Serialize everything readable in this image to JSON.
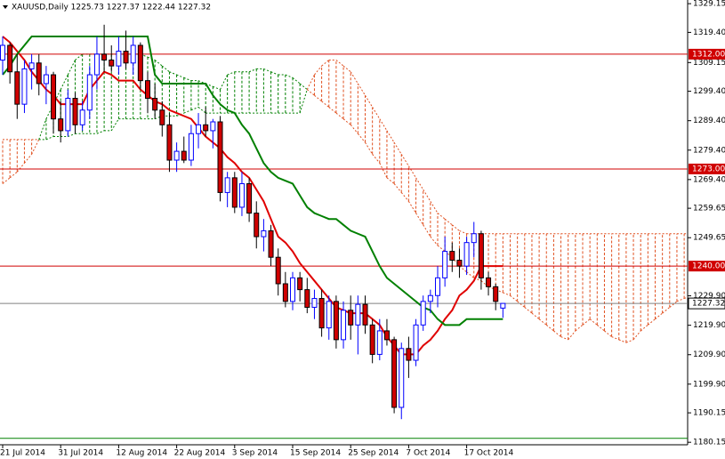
{
  "chart_data": {
    "type": "candlestick",
    "title": "XAUUSD,Daily 1225.73 1227.37 1222.44 1227.32",
    "categories": [
      "21 Jul 2014",
      null,
      null,
      null,
      null,
      null,
      null,
      null,
      "31 Jul 2014",
      null,
      null,
      null,
      null,
      null,
      null,
      null,
      "12 Aug 2014",
      null,
      null,
      null,
      null,
      null,
      null,
      null,
      "22 Aug 2014",
      null,
      null,
      null,
      null,
      null,
      null,
      null,
      "3 Sep 2014",
      null,
      null,
      null,
      null,
      null,
      null,
      null,
      "15 Sep 2014",
      null,
      null,
      null,
      null,
      null,
      null,
      null,
      "25 Sep 2014",
      null,
      null,
      null,
      null,
      null,
      null,
      null,
      "7 Oct 2014",
      null,
      null,
      null,
      null,
      null,
      null,
      null,
      "17 Oct 2014",
      null,
      null,
      null,
      null,
      null
    ],
    "open": [
      1310,
      1315,
      1306,
      1295,
      1307,
      1309,
      1302,
      1305,
      1290,
      1286,
      1297,
      1288,
      1293,
      1305,
      1312,
      1310,
      1308,
      1313,
      1309,
      1315,
      1303,
      1297,
      1293,
      1288,
      1276,
      1279,
      1276,
      1285,
      1288,
      1286,
      1289,
      1265,
      1270,
      1260,
      1268,
      1258,
      1250,
      1252,
      1243,
      1234,
      1228,
      1236,
      1232,
      1226,
      1229,
      1219,
      1228,
      1215,
      1225,
      1220,
      1227,
      1220,
      1210,
      1218,
      1215,
      1192,
      1212,
      1208,
      1220,
      1228,
      1230,
      1236,
      1245,
      1242,
      1240,
      1248,
      1251,
      1236,
      1233,
      1225.73
    ],
    "high": [
      1318,
      1316,
      1312,
      1310,
      1312,
      1312,
      1308,
      1306,
      1296,
      1300,
      1299,
      1296,
      1308,
      1318,
      1322,
      1315,
      1318,
      1320,
      1318,
      1316,
      1306,
      1302,
      1296,
      1292,
      1282,
      1284,
      1288,
      1292,
      1294,
      1290,
      1291,
      1272,
      1272,
      1272,
      1270,
      1262,
      1256,
      1254,
      1246,
      1238,
      1238,
      1238,
      1236,
      1232,
      1232,
      1230,
      1230,
      1228,
      1230,
      1230,
      1230,
      1222,
      1222,
      1222,
      1216,
      1214,
      1216,
      1222,
      1230,
      1232,
      1240,
      1250,
      1248,
      1246,
      1250,
      1255,
      1252,
      1238,
      1234,
      1227.37
    ],
    "low": [
      1305,
      1302,
      1290,
      1292,
      1300,
      1298,
      1295,
      1285,
      1282,
      1284,
      1285,
      1286,
      1290,
      1300,
      1306,
      1306,
      1305,
      1307,
      1305,
      1300,
      1292,
      1290,
      1284,
      1272,
      1272,
      1275,
      1274,
      1280,
      1284,
      1280,
      1262,
      1260,
      1258,
      1257,
      1255,
      1246,
      1245,
      1240,
      1230,
      1226,
      1225,
      1228,
      1224,
      1222,
      1216,
      1215,
      1212,
      1212,
      1215,
      1210,
      1217,
      1207,
      1208,
      1213,
      1190,
      1188,
      1202,
      1206,
      1218,
      1224,
      1226,
      1233,
      1238,
      1236,
      1237,
      1243,
      1232,
      1230,
      1225,
      1222.44
    ],
    "close": [
      1315,
      1306,
      1295,
      1307,
      1309,
      1302,
      1305,
      1290,
      1286,
      1297,
      1288,
      1293,
      1305,
      1312,
      1310,
      1308,
      1313,
      1309,
      1315,
      1303,
      1297,
      1293,
      1288,
      1276,
      1279,
      1276,
      1285,
      1288,
      1286,
      1289,
      1265,
      1270,
      1260,
      1268,
      1258,
      1250,
      1252,
      1243,
      1234,
      1228,
      1236,
      1232,
      1226,
      1229,
      1219,
      1228,
      1215,
      1225,
      1220,
      1227,
      1220,
      1210,
      1218,
      1215,
      1192,
      1212,
      1208,
      1220,
      1228,
      1230,
      1236,
      1245,
      1242,
      1240,
      1248,
      1251,
      1236,
      1233,
      1228,
      1227.32
    ],
    "up_color": "#0000ff",
    "down_color": "#d00000",
    "indicators": [
      {
        "color": "#e00000",
        "values": [
          1318,
          1316,
          1313,
          1310,
          1306,
          1303,
          1300,
          1298,
          1295,
          1295,
          1295,
          1295,
          1300,
          1303,
          1306,
          1305,
          1303,
          1303,
          1303,
          1300,
          1298,
          1296,
          1295,
          1293,
          1292,
          1291,
          1290,
          1287,
          1284,
          1282,
          1280,
          1277,
          1275,
          1272,
          1270,
          1266,
          1262,
          1256,
          1250,
          1248,
          1245,
          1241,
          1238,
          1235,
          1232,
          1229,
          1226,
          1225,
          1224,
          1224,
          1224,
          1222,
          1220,
          1216,
          1213,
          1210,
          1210,
          1210,
          1213,
          1215,
          1218,
          1222,
          1225,
          1230,
          1232,
          1235,
          1240,
          1240,
          1240,
          1240
        ]
      },
      {
        "color": "#008000",
        "values": [
          1305,
          1308,
          1312,
          1315,
          1318,
          1318,
          1318,
          1318,
          1318,
          1318,
          1318,
          1318,
          1318,
          1318,
          1318,
          1318,
          1318,
          1318,
          1318,
          1318,
          1318,
          1305,
          1302,
          1302,
          1302,
          1302,
          1302,
          1302,
          1302,
          1298,
          1295,
          1293,
          1292,
          1288,
          1285,
          1280,
          1275,
          1272,
          1270,
          1269,
          1268,
          1264,
          1260,
          1258,
          1257,
          1256,
          1256,
          1254,
          1252,
          1251,
          1250,
          1245,
          1240,
          1236,
          1234,
          1232,
          1230,
          1228,
          1226,
          1225,
          1222,
          1220,
          1220,
          1220,
          1222,
          1222,
          1222,
          1222,
          1222,
          1222
        ]
      }
    ],
    "cloud": {
      "bull_color": "#008000",
      "bear_color": "#e05020",
      "span_a": [
        1268,
        1270,
        1272,
        1275,
        1278,
        1283,
        1290,
        1295,
        1300,
        1305,
        1310,
        1312,
        1312,
        1312,
        1312,
        1312,
        1312,
        1312,
        1312,
        1312,
        1311,
        1310,
        1308,
        1306,
        1305,
        1304,
        1303,
        1303,
        1302,
        1301,
        1300,
        1305,
        1306,
        1306,
        1306,
        1307,
        1307,
        1306,
        1305,
        1305,
        1304,
        1302,
        1300,
        1298,
        1296,
        1294,
        1292,
        1290,
        1288,
        1285,
        1282,
        1278,
        1275,
        1270,
        1268,
        1265,
        1262,
        1258,
        1254,
        1250,
        1247,
        1245,
        1243,
        1240,
        1238,
        1236,
        1235,
        1233,
        1232,
        1231,
        1230,
        1228,
        1226,
        1224,
        1222,
        1220,
        1218,
        1216,
        1215,
        1218,
        1220,
        1222,
        1220,
        1218,
        1216,
        1215,
        1214,
        1215,
        1218,
        1220,
        1222,
        1224,
        1226,
        1228,
        1229,
        1230
      ],
      "span_b": [
        1283,
        1283,
        1283,
        1283,
        1283,
        1283,
        1283,
        1284,
        1284,
        1284,
        1285,
        1285,
        1285,
        1285,
        1286,
        1286,
        1290,
        1290,
        1290,
        1290,
        1290,
        1290,
        1291,
        1291,
        1291,
        1292,
        1293,
        1294,
        1292,
        1292,
        1292,
        1292,
        1292,
        1292,
        1292,
        1292,
        1292,
        1292,
        1292,
        1292,
        1292,
        1292,
        1300,
        1305,
        1308,
        1310,
        1310,
        1308,
        1306,
        1302,
        1298,
        1294,
        1290,
        1286,
        1282,
        1278,
        1274,
        1270,
        1266,
        1262,
        1258,
        1256,
        1254,
        1252,
        1251,
        1251,
        1251,
        1251,
        1251,
        1251,
        1251,
        1251,
        1251,
        1251,
        1251,
        1251,
        1251,
        1251,
        1251,
        1251,
        1251,
        1251,
        1251,
        1251,
        1251,
        1251,
        1251,
        1251,
        1251,
        1251,
        1251,
        1251,
        1251,
        1251,
        1251,
        1251
      ]
    },
    "hlines": [
      {
        "value": 1312,
        "label": "1312.00",
        "color": "#d00000"
      },
      {
        "value": 1273,
        "label": "1273.00",
        "color": "#d00000"
      },
      {
        "value": 1240,
        "label": "1240.00",
        "color": "#d00000"
      },
      {
        "value": 1181.5,
        "color": "#008000"
      }
    ],
    "last_price": 1227.32,
    "ylim": [
      1179.3,
      1330.4
    ],
    "yticks": [
      1329.15,
      {
        "value": 1319.4,
        "label": "1319.40"
      },
      1309.15,
      {
        "value": 1299.4,
        "label": "1299.40"
      },
      {
        "value": 1289.4,
        "label": "1289.40"
      },
      {
        "value": 1279.4,
        "label": "1279.40"
      },
      {
        "value": 1269.4,
        "label": "1269.40"
      },
      1259.65,
      1249.65,
      {
        "value": 1229.9,
        "label": "1229.90"
      },
      {
        "value": 1219.9,
        "label": "1219.90"
      },
      {
        "value": 1209.9,
        "label": "1209.90"
      },
      {
        "value": 1199.9,
        "label": "1199.90"
      },
      1190.15,
      1180.15
    ]
  }
}
